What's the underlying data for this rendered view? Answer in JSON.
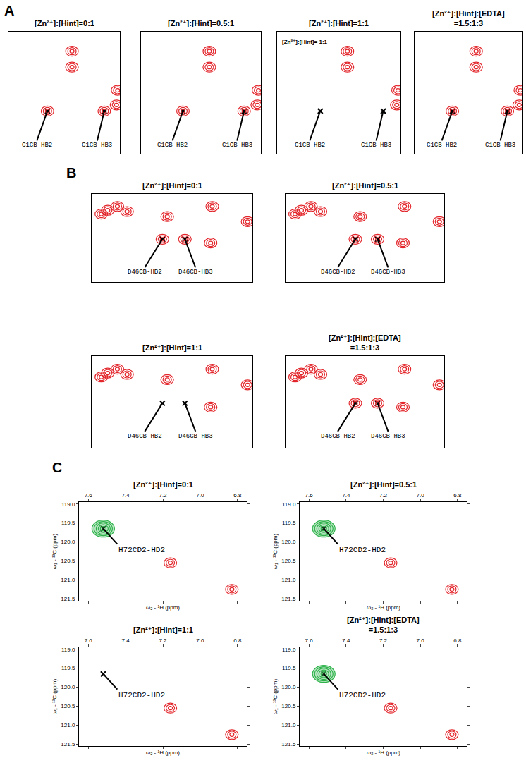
{
  "panel_labels": [
    "A",
    "B",
    "C"
  ],
  "chart_data": [
    {
      "panel": "A",
      "type": "scatter",
      "title": "[Zn²⁺]:[Hint]=0:1",
      "tick_labels": false,
      "xlim": [
        3.6,
        2.6
      ],
      "ylim": [
        32,
        22
      ],
      "points": [
        {
          "label": "C1CB-HB2",
          "x": 3.25,
          "y": 28.5,
          "color": "#e3262b",
          "present": true
        },
        {
          "label": "C1CB-HB3",
          "x": 2.74,
          "y": 28.5,
          "color": "#e3262b",
          "present": true
        },
        {
          "x": 3.03,
          "y": 23.6,
          "color": "#e3262b",
          "present": true
        },
        {
          "x": 3.03,
          "y": 24.9,
          "color": "#e3262b",
          "present": true
        },
        {
          "x": 2.62,
          "y": 26.8,
          "color": "#e3262b",
          "present": true
        },
        {
          "x": 2.63,
          "y": 28.0,
          "color": "#e3262b",
          "present": true
        }
      ]
    },
    {
      "panel": "A",
      "type": "scatter",
      "title": "[Zn²⁺]:[Hint]=0.5:1",
      "tick_labels": false,
      "xlim": [
        3.6,
        2.6
      ],
      "ylim": [
        32,
        22
      ],
      "points": [
        {
          "label": "C1CB-HB2",
          "x": 3.25,
          "y": 28.5,
          "color": "#e3262b",
          "present": true
        },
        {
          "label": "C1CB-HB3",
          "x": 2.74,
          "y": 28.5,
          "color": "#e3262b",
          "present": true
        },
        {
          "x": 3.03,
          "y": 23.6,
          "color": "#e3262b",
          "present": true
        },
        {
          "x": 3.03,
          "y": 24.9,
          "color": "#e3262b",
          "present": true
        },
        {
          "x": 2.62,
          "y": 26.8,
          "color": "#e3262b",
          "present": true
        },
        {
          "x": 2.63,
          "y": 28.0,
          "color": "#e3262b",
          "present": true
        }
      ]
    },
    {
      "panel": "A",
      "type": "scatter",
      "title": "[Zn²⁺]:[Hint]=1:1",
      "annotation": "[Zn²⁺]:[Hint]= 1:1",
      "tick_labels": false,
      "xlim": [
        3.6,
        2.6
      ],
      "ylim": [
        32,
        22
      ],
      "points": [
        {
          "label": "C1CB-HB2",
          "x": 3.25,
          "y": 28.5,
          "color": "#e3262b",
          "present": false
        },
        {
          "label": "C1CB-HB3",
          "x": 2.74,
          "y": 28.5,
          "color": "#e3262b",
          "present": false
        },
        {
          "x": 3.03,
          "y": 23.6,
          "color": "#e3262b",
          "present": true
        },
        {
          "x": 3.03,
          "y": 24.9,
          "color": "#e3262b",
          "present": true
        },
        {
          "x": 2.62,
          "y": 26.8,
          "color": "#e3262b",
          "present": true
        },
        {
          "x": 2.63,
          "y": 28.0,
          "color": "#e3262b",
          "present": true
        }
      ]
    },
    {
      "panel": "A",
      "type": "scatter",
      "title": "[Zn²⁺]:[Hint]:[EDTA]\n=1.5:1:3",
      "tick_labels": false,
      "xlim": [
        3.6,
        2.6
      ],
      "ylim": [
        32,
        22
      ],
      "points": [
        {
          "label": "C1CB-HB2",
          "x": 3.25,
          "y": 28.5,
          "color": "#e3262b",
          "present": true
        },
        {
          "label": "C1CB-HB3",
          "x": 2.74,
          "y": 28.5,
          "color": "#e3262b",
          "present": true
        },
        {
          "x": 3.03,
          "y": 23.6,
          "color": "#e3262b",
          "present": true
        },
        {
          "x": 3.03,
          "y": 24.9,
          "color": "#e3262b",
          "present": true
        },
        {
          "x": 2.62,
          "y": 26.8,
          "color": "#e3262b",
          "present": true
        },
        {
          "x": 2.63,
          "y": 28.0,
          "color": "#e3262b",
          "present": true
        }
      ]
    },
    {
      "panel": "B",
      "type": "scatter",
      "title": "[Zn²⁺]:[Hint]=0:1",
      "tick_labels": false,
      "xlim": [
        2.95,
        2.45
      ],
      "ylim": [
        45,
        38
      ],
      "points": [
        {
          "label": "D46CB-HB2",
          "x": 2.73,
          "y": 41.6,
          "color": "#e3262b",
          "present": true
        },
        {
          "label": "D46CB-HB3",
          "x": 2.66,
          "y": 41.6,
          "color": "#e3262b",
          "present": true
        },
        {
          "x": 2.715,
          "y": 39.8,
          "color": "#e3262b",
          "present": true
        },
        {
          "x": 2.575,
          "y": 39.0,
          "color": "#e3262b",
          "present": true
        },
        {
          "x": 2.58,
          "y": 41.9,
          "color": "#e3262b",
          "present": true
        },
        {
          "x": 2.465,
          "y": 40.2,
          "color": "#e3262b",
          "present": true
        },
        {
          "x": 2.9,
          "y": 39.3,
          "color": "#e3262b",
          "present": true
        },
        {
          "x": 2.87,
          "y": 39.0,
          "color": "#e3262b",
          "present": true
        },
        {
          "x": 2.84,
          "y": 39.4,
          "color": "#e3262b",
          "present": true
        },
        {
          "x": 2.92,
          "y": 39.6,
          "color": "#e3262b",
          "present": true
        }
      ]
    },
    {
      "panel": "B",
      "type": "scatter",
      "title": "[Zn²⁺]:[Hint]=0.5:1",
      "tick_labels": false,
      "xlim": [
        2.95,
        2.45
      ],
      "ylim": [
        45,
        38
      ],
      "points": [
        {
          "label": "D46CB-HB2",
          "x": 2.73,
          "y": 41.6,
          "color": "#e3262b",
          "present": true
        },
        {
          "label": "D46CB-HB3",
          "x": 2.66,
          "y": 41.6,
          "color": "#e3262b",
          "present": true
        },
        {
          "x": 2.715,
          "y": 39.8,
          "color": "#e3262b",
          "present": true
        },
        {
          "x": 2.575,
          "y": 39.0,
          "color": "#e3262b",
          "present": true
        },
        {
          "x": 2.58,
          "y": 41.9,
          "color": "#e3262b",
          "present": true
        },
        {
          "x": 2.465,
          "y": 40.2,
          "color": "#e3262b",
          "present": true
        },
        {
          "x": 2.9,
          "y": 39.3,
          "color": "#e3262b",
          "present": true
        },
        {
          "x": 2.87,
          "y": 39.0,
          "color": "#e3262b",
          "present": true
        },
        {
          "x": 2.84,
          "y": 39.4,
          "color": "#e3262b",
          "present": true
        },
        {
          "x": 2.92,
          "y": 39.6,
          "color": "#e3262b",
          "present": true
        }
      ]
    },
    {
      "panel": "B",
      "type": "scatter",
      "title": "[Zn²⁺]:[Hint]=1:1",
      "tick_labels": false,
      "xlim": [
        2.95,
        2.45
      ],
      "ylim": [
        45,
        38
      ],
      "points": [
        {
          "label": "D46CB-HB2",
          "x": 2.73,
          "y": 41.6,
          "color": "#e3262b",
          "present": false
        },
        {
          "label": "D46CB-HB3",
          "x": 2.66,
          "y": 41.6,
          "color": "#e3262b",
          "present": false
        },
        {
          "x": 2.715,
          "y": 39.8,
          "color": "#e3262b",
          "present": true
        },
        {
          "x": 2.575,
          "y": 39.0,
          "color": "#e3262b",
          "present": true
        },
        {
          "x": 2.58,
          "y": 41.9,
          "color": "#e3262b",
          "present": true
        },
        {
          "x": 2.465,
          "y": 40.2,
          "color": "#e3262b",
          "present": true
        },
        {
          "x": 2.9,
          "y": 39.3,
          "color": "#e3262b",
          "present": true
        },
        {
          "x": 2.87,
          "y": 39.0,
          "color": "#e3262b",
          "present": true
        },
        {
          "x": 2.84,
          "y": 39.4,
          "color": "#e3262b",
          "present": true
        },
        {
          "x": 2.92,
          "y": 39.6,
          "color": "#e3262b",
          "present": true
        }
      ]
    },
    {
      "panel": "B",
      "type": "scatter",
      "title": "[Zn²⁺]:[Hint]:[EDTA]\n=1.5:1:3",
      "tick_labels": false,
      "xlim": [
        2.95,
        2.45
      ],
      "ylim": [
        45,
        38
      ],
      "points": [
        {
          "label": "D46CB-HB2",
          "x": 2.73,
          "y": 41.6,
          "color": "#e3262b",
          "present": true
        },
        {
          "label": "D46CB-HB3",
          "x": 2.66,
          "y": 41.6,
          "color": "#e3262b",
          "present": true
        },
        {
          "x": 2.715,
          "y": 39.8,
          "color": "#e3262b",
          "present": true
        },
        {
          "x": 2.575,
          "y": 39.0,
          "color": "#e3262b",
          "present": true
        },
        {
          "x": 2.58,
          "y": 41.9,
          "color": "#e3262b",
          "present": true
        },
        {
          "x": 2.465,
          "y": 40.2,
          "color": "#e3262b",
          "present": true
        },
        {
          "x": 2.9,
          "y": 39.3,
          "color": "#e3262b",
          "present": true
        },
        {
          "x": 2.87,
          "y": 39.0,
          "color": "#e3262b",
          "present": true
        },
        {
          "x": 2.84,
          "y": 39.4,
          "color": "#e3262b",
          "present": true
        },
        {
          "x": 2.92,
          "y": 39.6,
          "color": "#e3262b",
          "present": true
        }
      ]
    },
    {
      "panel": "C",
      "type": "scatter",
      "title": "[Zn²⁺]:[Hint]=0:1",
      "x_label": "ω₂ - ¹H (ppm)",
      "y_label": "ω₁ - ¹³C (ppm)",
      "xlim": [
        7.65,
        6.75
      ],
      "ylim": [
        121.55,
        118.95
      ],
      "xticks": [
        7.6,
        7.4,
        7.2,
        {
          "value": 7,
          "label": "7.0"
        },
        6.8
      ],
      "yticks": [
        {
          "value": 119,
          "label": "119.0"
        },
        119.5,
        {
          "value": 120,
          "label": "120.0"
        },
        120.5,
        {
          "value": 121,
          "label": "121.0"
        },
        121.5
      ],
      "points": [
        {
          "label": "H72CD2-HD2",
          "x": 7.52,
          "y": 119.65,
          "color": "#2db34a",
          "present": true
        },
        {
          "x": 7.16,
          "y": 120.55,
          "color": "#e3262b",
          "present": true
        },
        {
          "x": 6.83,
          "y": 121.25,
          "color": "#e3262b",
          "present": true
        }
      ]
    },
    {
      "panel": "C",
      "type": "scatter",
      "title": "[Zn²⁺]:[Hint]=0.5:1",
      "x_label": "ω₂ - ¹H (ppm)",
      "y_label": "ω₁ - ¹³C (ppm)",
      "xlim": [
        7.65,
        6.75
      ],
      "ylim": [
        121.55,
        118.95
      ],
      "xticks": [
        7.6,
        7.4,
        7.2,
        {
          "value": 7,
          "label": "7.0"
        },
        6.8
      ],
      "yticks": [
        {
          "value": 119,
          "label": "119.0"
        },
        119.5,
        {
          "value": 120,
          "label": "120.0"
        },
        120.5,
        {
          "value": 121,
          "label": "121.0"
        },
        121.5
      ],
      "points": [
        {
          "label": "H72CD2-HD2",
          "x": 7.52,
          "y": 119.65,
          "color": "#2db34a",
          "present": true
        },
        {
          "x": 7.16,
          "y": 120.55,
          "color": "#e3262b",
          "present": true
        },
        {
          "x": 6.83,
          "y": 121.25,
          "color": "#e3262b",
          "present": true
        }
      ]
    },
    {
      "panel": "C",
      "type": "scatter",
      "title": "[Zn²⁺]:[Hint]=1:1",
      "x_label": "ω₂ - ¹H (ppm)",
      "y_label": "ω₁ - ¹³C (ppm)",
      "xlim": [
        7.65,
        6.75
      ],
      "ylim": [
        121.55,
        118.95
      ],
      "xticks": [
        7.6,
        7.4,
        7.2,
        {
          "value": 7,
          "label": "7.0"
        },
        6.8
      ],
      "yticks": [
        {
          "value": 119,
          "label": "119.0"
        },
        119.5,
        {
          "value": 120,
          "label": "120.0"
        },
        120.5,
        {
          "value": 121,
          "label": "121.0"
        },
        121.5
      ],
      "points": [
        {
          "label": "H72CD2-HD2",
          "x": 7.52,
          "y": 119.65,
          "color": "#2db34a",
          "present": false
        },
        {
          "x": 7.16,
          "y": 120.55,
          "color": "#e3262b",
          "present": true
        },
        {
          "x": 6.83,
          "y": 121.25,
          "color": "#e3262b",
          "present": true
        }
      ]
    },
    {
      "panel": "C",
      "type": "scatter",
      "title": "[Zn²⁺]:[Hint]:[EDTA]\n=1.5:1:3",
      "x_label": "ω₂ - ¹H (ppm)",
      "y_label": "ω₁ - ¹³C (ppm)",
      "xlim": [
        7.65,
        6.75
      ],
      "ylim": [
        121.55,
        118.95
      ],
      "xticks": [
        7.6,
        7.4,
        7.2,
        {
          "value": 7,
          "label": "7.0"
        },
        6.8
      ],
      "yticks": [
        {
          "value": 119,
          "label": "119.0"
        },
        119.5,
        {
          "value": 120,
          "label": "120.0"
        },
        120.5,
        {
          "value": 121,
          "label": "121.0"
        },
        121.5
      ],
      "points": [
        {
          "label": "H72CD2-HD2",
          "x": 7.52,
          "y": 119.65,
          "color": "#2db34a",
          "present": true
        },
        {
          "x": 7.16,
          "y": 120.55,
          "color": "#e3262b",
          "present": true
        },
        {
          "x": 6.83,
          "y": 121.25,
          "color": "#e3262b",
          "present": true
        }
      ]
    }
  ]
}
